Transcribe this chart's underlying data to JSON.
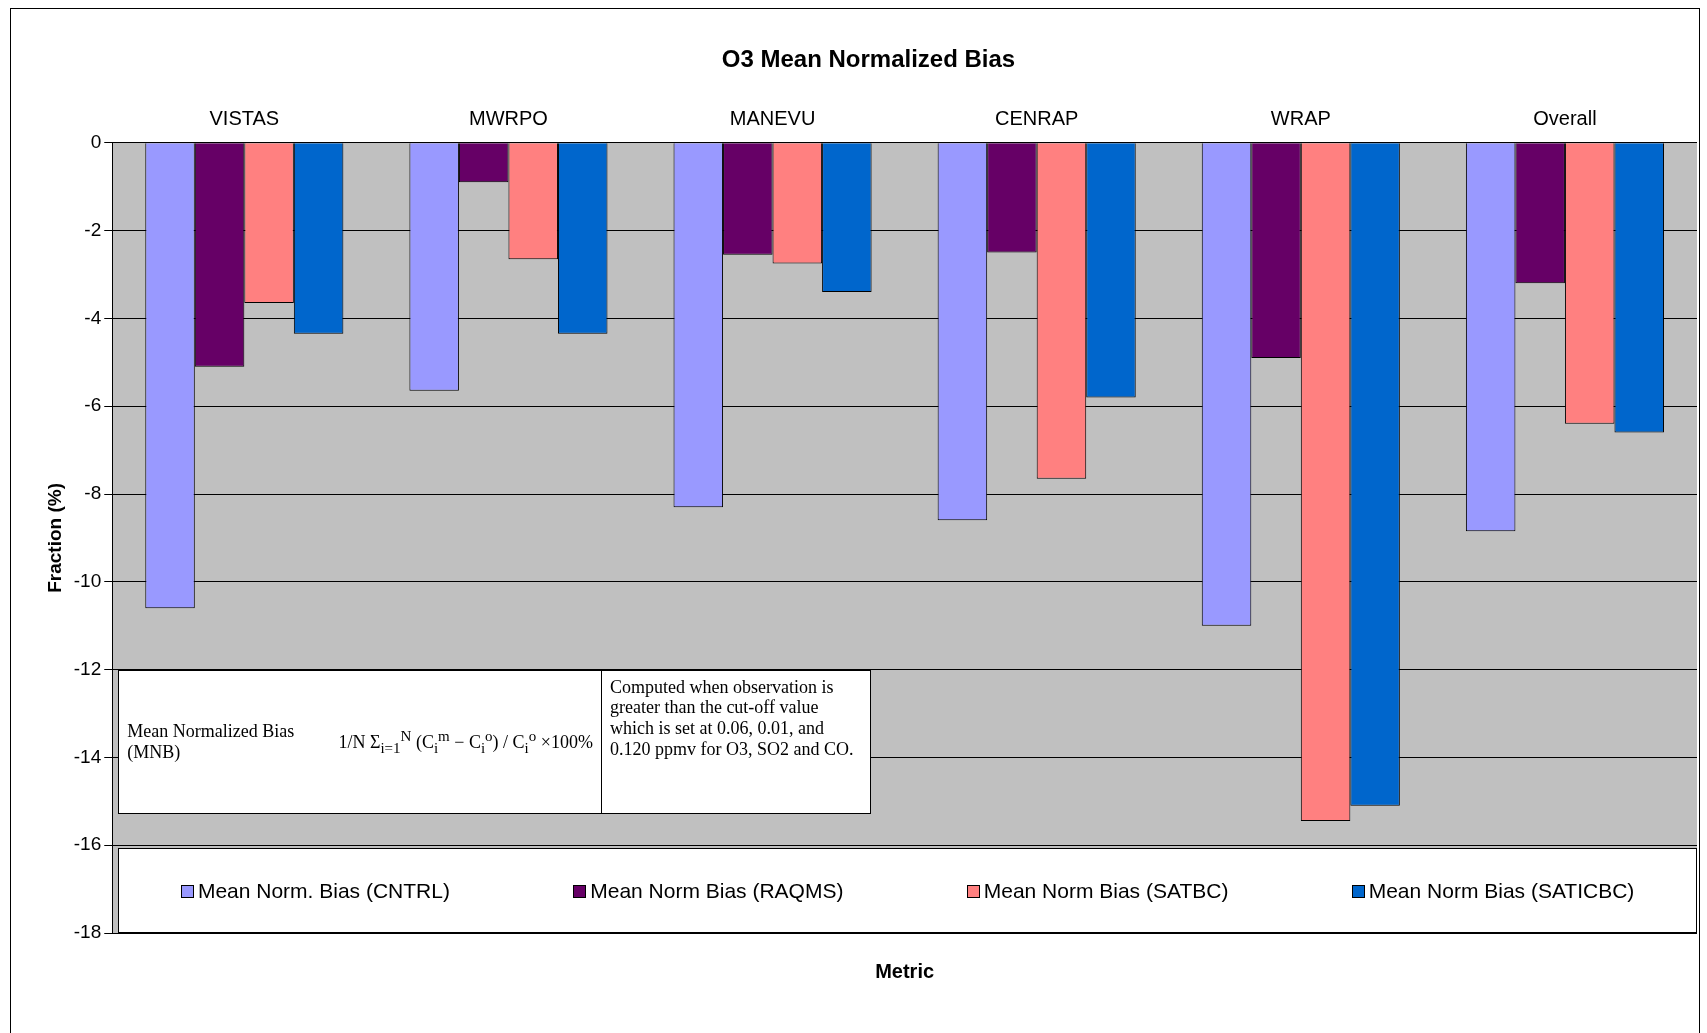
{
  "chart_data": {
    "type": "bar",
    "title": "O3 Mean Normalized Bias",
    "xlabel": "Metric",
    "ylabel": "Fraction (%)",
    "categories": [
      "VISTAS",
      "MWRPO",
      "MANEVU",
      "CENRAP",
      "WRAP",
      "Overall"
    ],
    "series": [
      {
        "name": "Mean Norm. Bias (CNTRL)",
        "color": "#9999ff",
        "values": [
          -10.6,
          -5.65,
          -8.3,
          -8.6,
          -11.0,
          -8.85
        ]
      },
      {
        "name": "Mean Norm Bias (RAQMS)",
        "color": "#660066",
        "values": [
          -5.1,
          -0.9,
          -2.55,
          -2.5,
          -4.9,
          -3.2
        ]
      },
      {
        "name": "Mean Norm Bias (SATBC)",
        "color": "#ff8080",
        "values": [
          -3.65,
          -2.65,
          -2.75,
          -7.65,
          -15.45,
          -6.4
        ]
      },
      {
        "name": "Mean Norm Bias (SATICBC)",
        "color": "#0066cc",
        "values": [
          -4.35,
          -4.35,
          -3.4,
          -5.8,
          -15.1,
          -6.6
        ]
      }
    ],
    "ylim": [
      -18,
      0
    ],
    "yticks": [
      -18,
      -16,
      -14,
      -12,
      -10,
      -8,
      -6,
      -4,
      -2,
      0
    ],
    "grid": "y",
    "legend": "bottom",
    "annotations": [
      "Mean Normalized Bias (MNB)",
      "1/N Σ$_{i=1}$$^{N}$ (C$_{i}$$^{m}$ − C$_{i}$$^{o}$) / C$_{i}$$^{o}$ ×100%",
      "Computed when observation is greater than the cut-off value which is set at 0.06, 0.01, and 0.120 ppmv for O3, SO2 and CO."
    ]
  }
}
